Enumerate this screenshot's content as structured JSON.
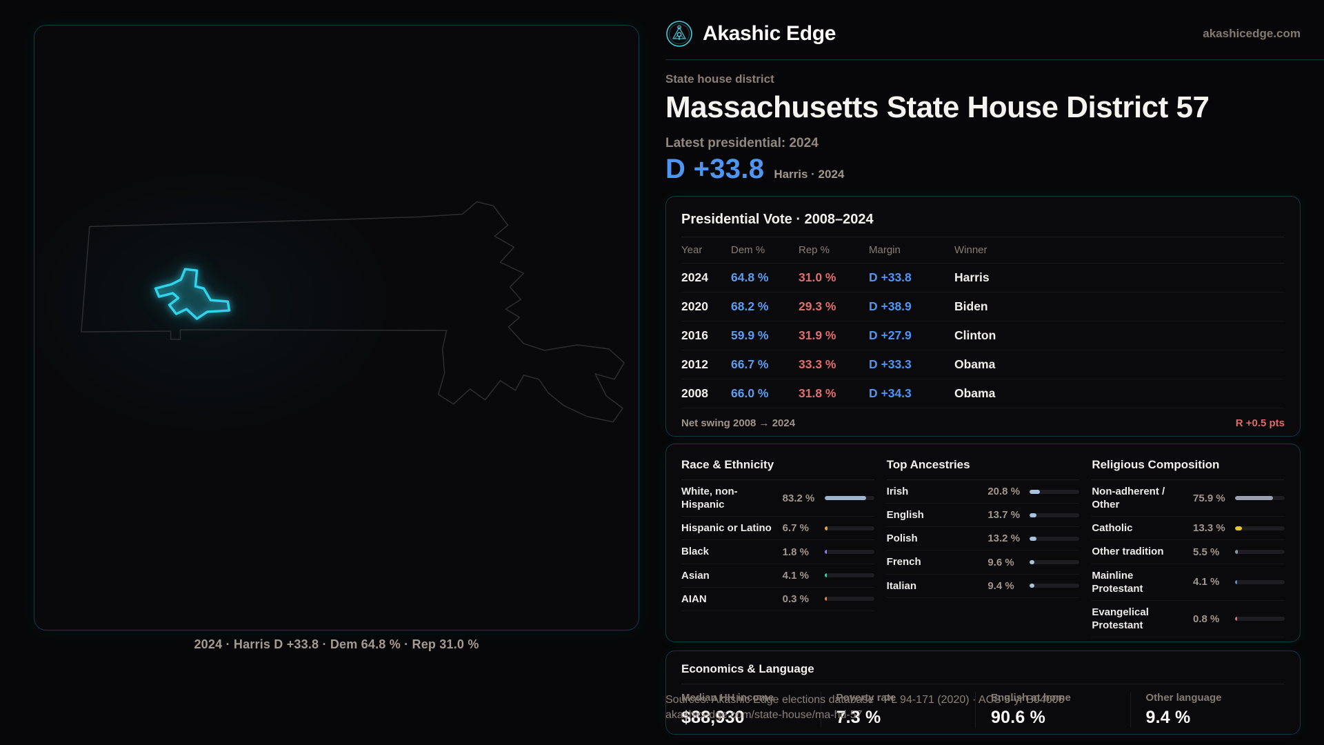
{
  "brand": {
    "name": "Akashic Edge",
    "domain": "akashicedge.com"
  },
  "page": {
    "kicker": "State house district",
    "title": "Massachusetts State House District 57",
    "latest_label": "Latest presidential: 2024",
    "headline_margin": "D +33.8",
    "headline_context": "Harris · 2024"
  },
  "map": {
    "caption": "2024 · Harris D +33.8 · Dem 64.8 % · Rep 31.0 %"
  },
  "vote_table": {
    "title": "Presidential Vote · 2008–2024",
    "columns": [
      "Year",
      "Dem %",
      "Rep %",
      "Margin",
      "Winner"
    ],
    "rows": [
      {
        "year": "2024",
        "dem": "64.8 %",
        "rep": "31.0 %",
        "margin": "D +33.8",
        "winner": "Harris"
      },
      {
        "year": "2020",
        "dem": "68.2 %",
        "rep": "29.3 %",
        "margin": "D +38.9",
        "winner": "Biden"
      },
      {
        "year": "2016",
        "dem": "59.9 %",
        "rep": "31.9 %",
        "margin": "D +27.9",
        "winner": "Clinton"
      },
      {
        "year": "2012",
        "dem": "66.7 %",
        "rep": "33.3 %",
        "margin": "D +33.3",
        "winner": "Obama"
      },
      {
        "year": "2008",
        "dem": "66.0 %",
        "rep": "31.8 %",
        "margin": "D +34.3",
        "winner": "Obama"
      }
    ],
    "net_swing_label": "Net swing 2008 → 2024",
    "net_swing_value": "R +0.5 pts"
  },
  "race": {
    "title": "Race & Ethnicity",
    "rows": [
      {
        "label": "White, non-Hispanic",
        "value": "83.2 %",
        "pct": 83.2,
        "color": "#9fb3cc"
      },
      {
        "label": "Hispanic or Latino",
        "value": "6.7 %",
        "pct": 6.7,
        "color": "#e2a23f"
      },
      {
        "label": "Black",
        "value": "1.8 %",
        "pct": 1.8,
        "color": "#8f7ff0"
      },
      {
        "label": "Asian",
        "value": "4.1 %",
        "pct": 4.1,
        "color": "#3ecfa8"
      },
      {
        "label": "AIAN",
        "value": "0.3 %",
        "pct": 0.3,
        "color": "#d98a4a"
      }
    ]
  },
  "ancestries": {
    "title": "Top Ancestries",
    "rows": [
      {
        "label": "Irish",
        "value": "20.8 %",
        "pct": 20.8,
        "color": "#a9c2dd"
      },
      {
        "label": "English",
        "value": "13.7 %",
        "pct": 13.7,
        "color": "#a9c2dd"
      },
      {
        "label": "Polish",
        "value": "13.2 %",
        "pct": 13.2,
        "color": "#a9c2dd"
      },
      {
        "label": "French",
        "value": "9.6 %",
        "pct": 9.6,
        "color": "#a9c2dd"
      },
      {
        "label": "Italian",
        "value": "9.4 %",
        "pct": 9.4,
        "color": "#a9c2dd"
      }
    ]
  },
  "religion": {
    "title": "Religious Composition",
    "rows": [
      {
        "label": "Non-adherent / Other",
        "value": "75.9 %",
        "pct": 75.9,
        "color": "#9aa0ad"
      },
      {
        "label": "Catholic",
        "value": "13.3 %",
        "pct": 13.3,
        "color": "#e8c23c"
      },
      {
        "label": "Other tradition",
        "value": "5.5 %",
        "pct": 5.5,
        "color": "#8a94a8"
      },
      {
        "label": "Mainline Protestant",
        "value": "4.1 %",
        "pct": 4.1,
        "color": "#4a90e0"
      },
      {
        "label": "Evangelical Protestant",
        "value": "0.8 %",
        "pct": 0.8,
        "color": "#e07070"
      }
    ]
  },
  "economics": {
    "title": "Economics & Language",
    "stats": [
      {
        "label": "Median HH income",
        "value": "$88,930"
      },
      {
        "label": "Poverty rate",
        "value": "7.3 %"
      },
      {
        "label": "English at home",
        "value": "90.6 %"
      },
      {
        "label": "Other language",
        "value": "9.4 %"
      }
    ]
  },
  "footer": {
    "line1": "Sources: Akashic Edge elections database · PL 94-171 (2020) · ACS 5-yr B04006",
    "line2": "akashicedge.com/state-house/ma-hd-57"
  },
  "colors": {
    "accent_cyan": "#2fd5ec",
    "dem_blue": "#5d9df0",
    "rep_red": "#e06e6e",
    "margin_blue": "#4f95f2",
    "swing_red": "#e06a6a"
  }
}
